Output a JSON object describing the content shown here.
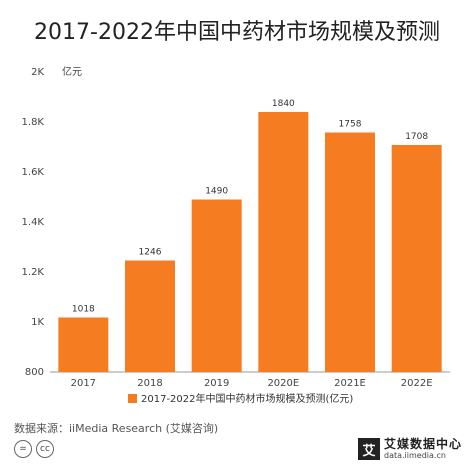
{
  "title": "2017-2022年中国中药材市场规模及预测",
  "unit_label": "亿元",
  "source": "数据来源：iiMedia Research (艾媒咨询)",
  "cc_icons": [
    "=",
    "cc"
  ],
  "brand": {
    "mark": "艾",
    "name": "艾媒数据中心",
    "url": "data.iimedia.cn"
  },
  "colors": {
    "bar": "#F57C20",
    "axis": "#999999"
  },
  "chart_data": {
    "type": "bar",
    "title": "2017-2022年中国中药材市场规模及预测",
    "xlabel": "",
    "ylabel": "亿元",
    "categories": [
      "2017",
      "2018",
      "2019",
      "2020E",
      "2021E",
      "2022E"
    ],
    "series": [
      {
        "name": "2017-2022年中国中药材市场规模及预测(亿元)",
        "values": [
          1018,
          1246,
          1490,
          1840,
          1758,
          1708
        ]
      }
    ],
    "ylim": [
      800,
      2000
    ],
    "yticks": [
      800,
      1000,
      1200,
      1400,
      1600,
      1800,
      2000
    ],
    "ytick_labels": [
      "800",
      "1K",
      "1.2K",
      "1.4K",
      "1.6K",
      "1.8K",
      "2K"
    ],
    "grid": false,
    "legend_position": "bottom"
  }
}
